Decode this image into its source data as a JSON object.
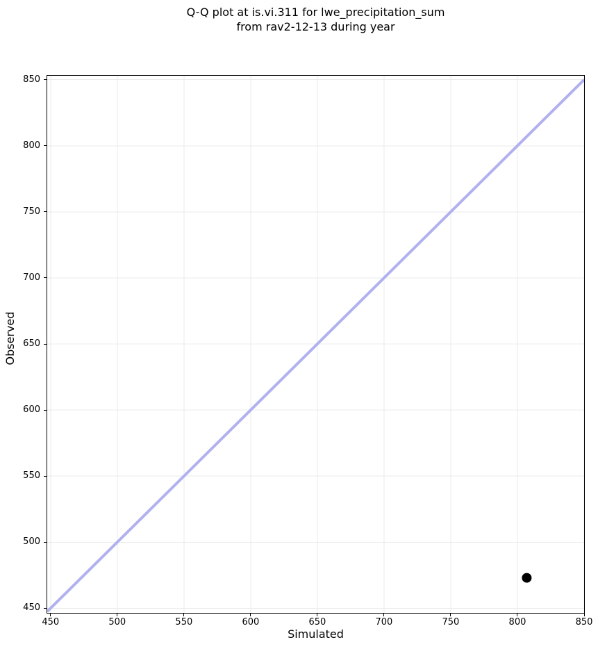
{
  "figure": {
    "background": "#ffffff",
    "text_color": "#000000"
  },
  "chart_data": {
    "type": "scatter",
    "title": "Q-Q plot at is.vi.311 for lwe_precipitation_sum\nfrom rav2-12-13 during year",
    "title_lines": [
      "Q-Q plot at is.vi.311 for lwe_precipitation_sum",
      "from rav2-12-13 during year"
    ],
    "xlabel": "Simulated",
    "ylabel": "Observed",
    "xlim": [
      447.5,
      850
    ],
    "ylim": [
      446.5,
      853
    ],
    "x_ticks": [
      450,
      500,
      550,
      600,
      650,
      700,
      750,
      800,
      850
    ],
    "y_ticks": [
      450,
      500,
      550,
      600,
      650,
      700,
      750,
      800,
      850
    ],
    "grid": true,
    "grid_color": "#ebebeb",
    "spine_color": "#000000",
    "legend": null,
    "series": [
      {
        "name": "identity-line",
        "kind": "line",
        "color": "#b1b1f0",
        "width": 4,
        "points": [
          [
            447.5,
            447.5
          ],
          [
            850,
            850
          ]
        ]
      },
      {
        "name": "quantile-points",
        "kind": "scatter",
        "color": "#000000",
        "marker_radius": 7,
        "points": [
          [
            807,
            473
          ]
        ]
      }
    ]
  }
}
